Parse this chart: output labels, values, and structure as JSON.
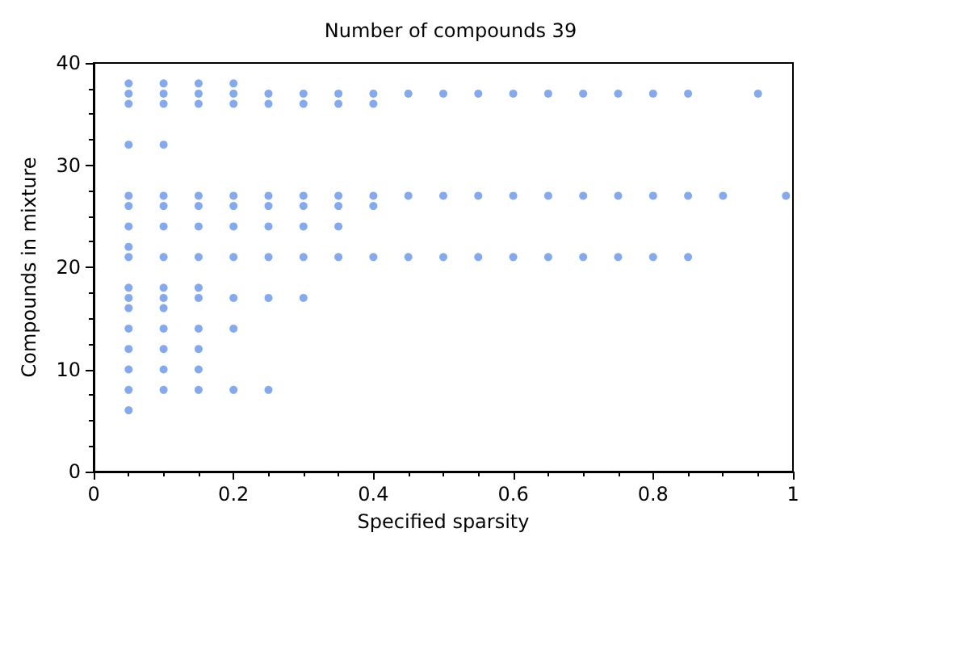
{
  "chart_data": {
    "type": "scatter",
    "title": "Number of compounds 39",
    "xlabel": "Specified sparsity",
    "ylabel": "Compounds in mixture",
    "x": [
      0.05,
      0.05,
      0.05,
      0.05,
      0.05,
      0.05,
      0.05,
      0.05,
      0.05,
      0.05,
      0.05,
      0.05,
      0.05,
      0.05,
      0.05,
      0.05,
      0.05,
      0.1,
      0.1,
      0.1,
      0.1,
      0.1,
      0.1,
      0.1,
      0.1,
      0.1,
      0.1,
      0.1,
      0.1,
      0.1,
      0.1,
      0.1,
      0.15,
      0.15,
      0.15,
      0.15,
      0.15,
      0.15,
      0.15,
      0.15,
      0.15,
      0.15,
      0.15,
      0.15,
      0.15,
      0.2,
      0.2,
      0.2,
      0.2,
      0.2,
      0.2,
      0.2,
      0.2,
      0.2,
      0.2,
      0.25,
      0.25,
      0.25,
      0.25,
      0.25,
      0.25,
      0.25,
      0.25,
      0.3,
      0.3,
      0.3,
      0.3,
      0.3,
      0.3,
      0.3,
      0.35,
      0.35,
      0.35,
      0.35,
      0.35,
      0.35,
      0.4,
      0.4,
      0.4,
      0.4,
      0.4,
      0.45,
      0.45,
      0.45,
      0.5,
      0.5,
      0.5,
      0.55,
      0.55,
      0.55,
      0.6,
      0.6,
      0.6,
      0.65,
      0.65,
      0.65,
      0.7,
      0.7,
      0.7,
      0.75,
      0.75,
      0.75,
      0.8,
      0.8,
      0.8,
      0.85,
      0.85,
      0.85,
      0.9,
      0.95,
      0.99
    ],
    "values": [
      38,
      37,
      36,
      32,
      27,
      26,
      24,
      22,
      21,
      18,
      17,
      16,
      14,
      12,
      10,
      8,
      6,
      38,
      37,
      36,
      32,
      27,
      26,
      24,
      21,
      18,
      17,
      16,
      14,
      12,
      10,
      8,
      38,
      37,
      36,
      27,
      26,
      24,
      21,
      18,
      17,
      14,
      12,
      10,
      8,
      38,
      37,
      36,
      27,
      26,
      24,
      21,
      17,
      14,
      8,
      37,
      36,
      27,
      26,
      24,
      21,
      17,
      8,
      37,
      36,
      27,
      26,
      24,
      21,
      17,
      37,
      36,
      27,
      26,
      24,
      21,
      37,
      36,
      27,
      26,
      21,
      37,
      27,
      21,
      37,
      27,
      21,
      37,
      27,
      21,
      37,
      27,
      21,
      37,
      27,
      21,
      37,
      27,
      21,
      37,
      27,
      21,
      37,
      27,
      21,
      37,
      27,
      21,
      27,
      37,
      27
    ],
    "color": "#6495ed",
    "marker": "circle",
    "xlim": [
      0,
      1
    ],
    "xticks": [
      0,
      0.2,
      0.4,
      0.6,
      0.8,
      1
    ],
    "ylim": [
      0,
      40
    ],
    "yticks": [
      0,
      10,
      20,
      30,
      40
    ],
    "grid": false
  }
}
